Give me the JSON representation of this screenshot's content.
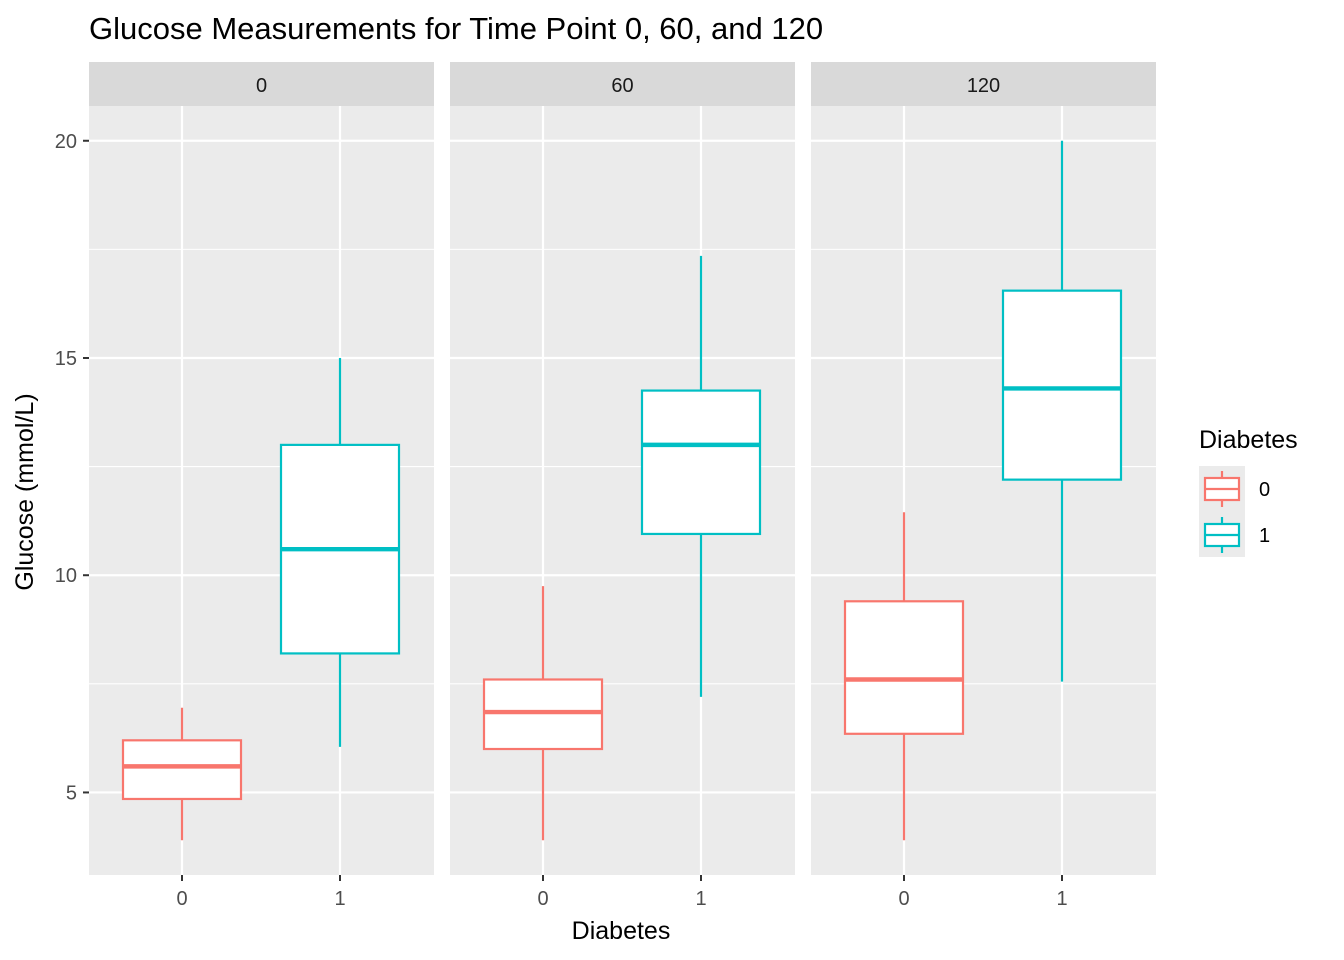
{
  "chart_data": {
    "type": "boxplot",
    "title": "Glucose Measurements for Time Point 0, 60, and 120",
    "xlabel": "Diabetes",
    "ylabel": "Glucose (mmol/L)",
    "ylim": [
      3.1,
      20.8
    ],
    "yticks": [
      5,
      10,
      15,
      20
    ],
    "categories": [
      "0",
      "1"
    ],
    "legend": {
      "title": "Diabetes",
      "position": "right",
      "entries": [
        "0",
        "1"
      ]
    },
    "colors": {
      "0": "#F8766D",
      "1": "#00BFC4"
    },
    "panels": [
      {
        "label": "0",
        "boxes": [
          {
            "group": "0",
            "min": 3.9,
            "q1": 4.85,
            "median": 5.6,
            "q3": 6.2,
            "max": 6.95
          },
          {
            "group": "1",
            "min": 6.05,
            "q1": 8.2,
            "median": 10.6,
            "q3": 13.0,
            "max": 15.0
          }
        ]
      },
      {
        "label": "60",
        "boxes": [
          {
            "group": "0",
            "min": 3.9,
            "q1": 6.0,
            "median": 6.85,
            "q3": 7.6,
            "max": 9.75
          },
          {
            "group": "1",
            "min": 7.2,
            "q1": 10.95,
            "median": 13.0,
            "q3": 14.25,
            "max": 17.35
          }
        ]
      },
      {
        "label": "120",
        "boxes": [
          {
            "group": "0",
            "min": 3.9,
            "q1": 6.35,
            "median": 7.6,
            "q3": 9.4,
            "max": 11.45
          },
          {
            "group": "1",
            "min": 7.55,
            "q1": 12.2,
            "median": 14.3,
            "q3": 16.55,
            "max": 20.0
          }
        ]
      }
    ]
  }
}
